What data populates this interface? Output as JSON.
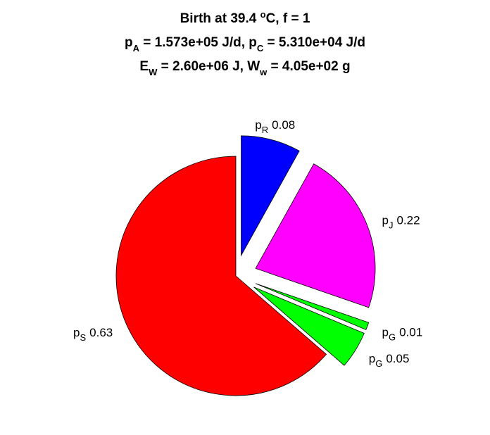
{
  "chart_data": {
    "type": "pie",
    "title": [
      [
        {
          "text": "Birth at 39.4 "
        },
        {
          "sup": "o"
        },
        {
          "text": "C, f = 1"
        }
      ],
      [
        {
          "text": "p"
        },
        {
          "sub": "A"
        },
        {
          "text": " = 1.573e+05 J/d, p"
        },
        {
          "sub": "C"
        },
        {
          "text": " = 5.310e+04 J/d"
        }
      ],
      [
        {
          "text": "E"
        },
        {
          "sub": "W"
        },
        {
          "text": " = 2.60e+06 J, W"
        },
        {
          "sub": "w"
        },
        {
          "text": " = 4.05e+02 g"
        }
      ]
    ],
    "labels": [
      [
        {
          "text": "p"
        },
        {
          "sub": "R"
        }
      ],
      [
        {
          "text": "p"
        },
        {
          "sub": "J"
        }
      ],
      [
        {
          "text": "p"
        },
        {
          "sub": "G"
        }
      ],
      [
        {
          "text": "p"
        },
        {
          "sub": "G"
        }
      ],
      [
        {
          "text": "p"
        },
        {
          "sub": "S"
        }
      ]
    ],
    "values": [
      0.08,
      0.22,
      0.01,
      0.05,
      0.63
    ],
    "colors": [
      "#0000ff",
      "#ff00ff",
      "#00ff00",
      "#00ff00",
      "#ff0000"
    ],
    "explode": [
      1,
      1,
      1,
      1,
      0
    ]
  }
}
